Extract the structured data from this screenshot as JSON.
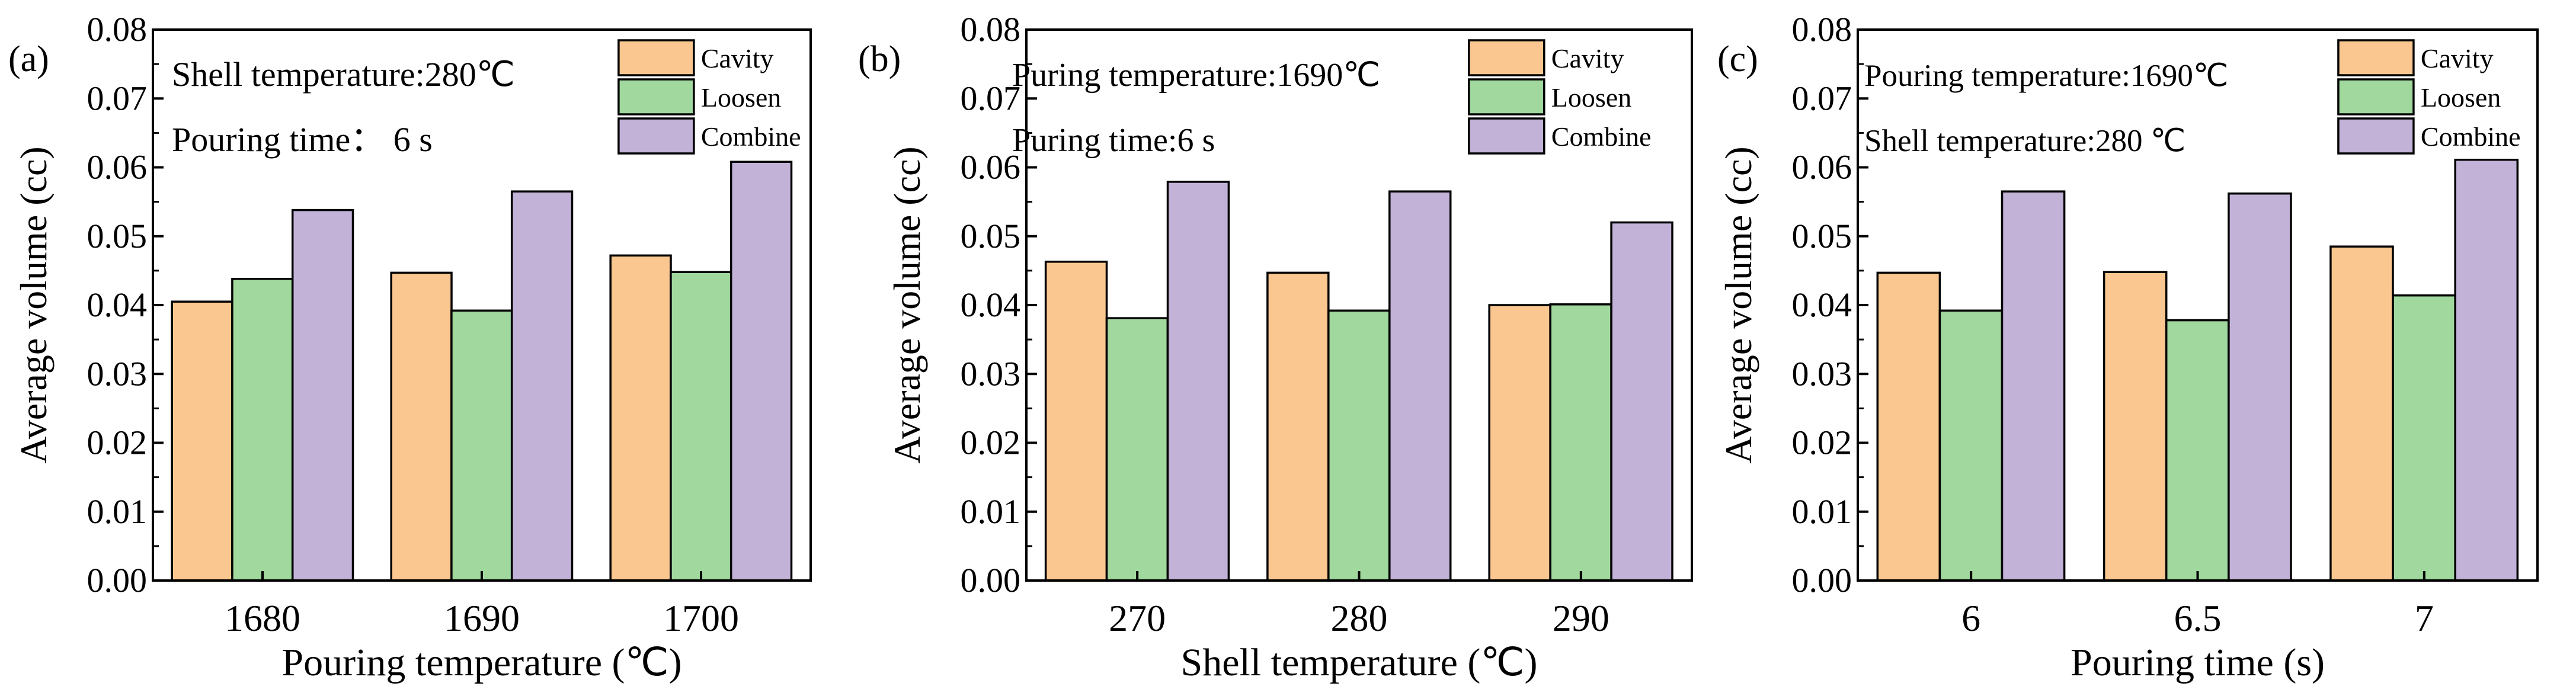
{
  "legend_labels": [
    "Cavity",
    "Loosen",
    "Combine"
  ],
  "colors": {
    "Cavity": "#FAC790",
    "Loosen": "#A0D89E",
    "Combine": "#C2B2D8"
  },
  "y_tick_labels": [
    "0.00",
    "0.01",
    "0.02",
    "0.03",
    "0.04",
    "0.05",
    "0.06",
    "0.07",
    "0.08"
  ],
  "chart_data": [
    {
      "type": "bar",
      "panel_label": "(a)",
      "xlabel": "Pouring temperature (℃)",
      "ylabel": "Average volume (cc)",
      "ylim": [
        0,
        0.08
      ],
      "categories": [
        "1680",
        "1690",
        "1700"
      ],
      "annotations": [
        "Shell temperature:280℃",
        "Pouring time： 6 s"
      ],
      "series": [
        {
          "name": "Cavity",
          "values": [
            0.0405,
            0.0447,
            0.0472
          ]
        },
        {
          "name": "Loosen",
          "values": [
            0.0438,
            0.0392,
            0.0448
          ]
        },
        {
          "name": "Combine",
          "values": [
            0.0538,
            0.0565,
            0.0608
          ]
        }
      ]
    },
    {
      "type": "bar",
      "panel_label": "(b)",
      "xlabel": "Shell temperature (℃)",
      "ylabel": "Average volume (cc)",
      "ylim": [
        0,
        0.08
      ],
      "categories": [
        "270",
        "280",
        "290"
      ],
      "annotations": [
        "Puring temperature:1690℃",
        "Puring time:6 s"
      ],
      "series": [
        {
          "name": "Cavity",
          "values": [
            0.0463,
            0.0447,
            0.04
          ]
        },
        {
          "name": "Loosen",
          "values": [
            0.0381,
            0.0392,
            0.0401
          ]
        },
        {
          "name": "Combine",
          "values": [
            0.0579,
            0.0565,
            0.052
          ]
        }
      ]
    },
    {
      "type": "bar",
      "panel_label": "(c)",
      "xlabel": "Pouring time (s)",
      "ylabel": "Average volume (cc)",
      "ylim": [
        0,
        0.08
      ],
      "categories": [
        "6",
        "6.5",
        "7"
      ],
      "annotations": [
        "Pouring temperature:1690℃",
        "Shell temperature:280 ℃"
      ],
      "series": [
        {
          "name": "Cavity",
          "values": [
            0.0447,
            0.0448,
            0.0485
          ]
        },
        {
          "name": "Loosen",
          "values": [
            0.0392,
            0.0378,
            0.0414
          ]
        },
        {
          "name": "Combine",
          "values": [
            0.0565,
            0.0562,
            0.0611
          ]
        }
      ]
    }
  ]
}
